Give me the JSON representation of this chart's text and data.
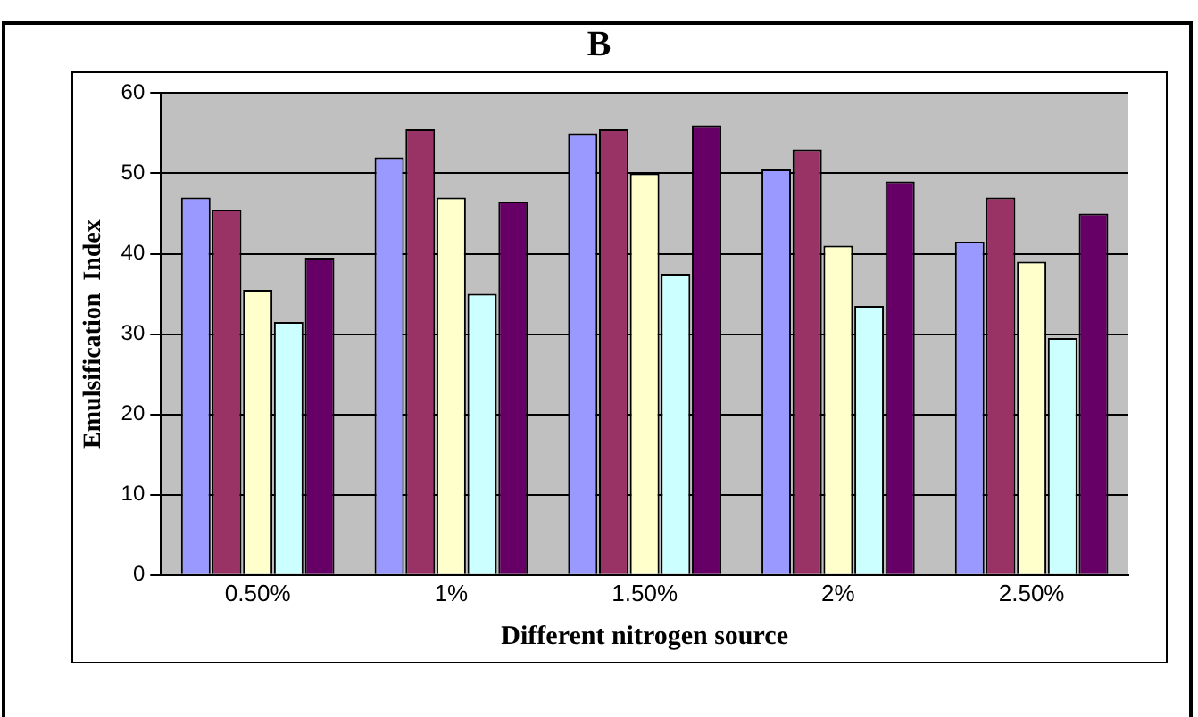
{
  "chart_data": {
    "type": "bar",
    "title": "B",
    "xlabel": "Different nitrogen source",
    "ylabel": "Emulsification  Index",
    "categories": [
      "0.50%",
      "1%",
      "1.50%",
      "2%",
      "2.50%"
    ],
    "series": [
      {
        "color": "#9999ff",
        "values": [
          47,
          52,
          55,
          50.5,
          41.5
        ]
      },
      {
        "color": "#993366",
        "values": [
          45.5,
          55.5,
          55.5,
          53,
          47
        ]
      },
      {
        "color": "#ffffcc",
        "values": [
          35.5,
          47,
          50,
          41,
          39
        ]
      },
      {
        "color": "#ccffff",
        "values": [
          31.5,
          35,
          37.5,
          33.5,
          29.5
        ]
      },
      {
        "color": "#660066",
        "values": [
          39.5,
          46.5,
          56,
          49,
          45
        ]
      }
    ],
    "ylim": [
      0,
      60
    ],
    "yticks": [
      0,
      10,
      20,
      30,
      40,
      50,
      60
    ],
    "grid": "y",
    "legend": false
  }
}
